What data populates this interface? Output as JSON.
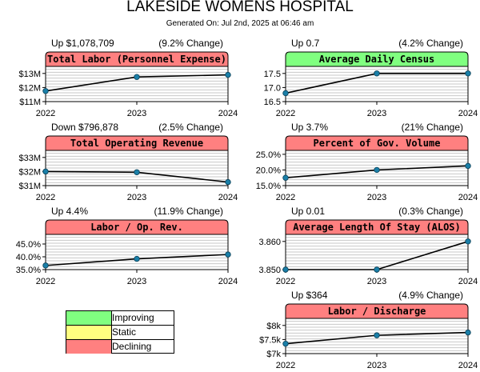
{
  "header": {
    "title": "LAKESIDE WOMENS HOSPITAL",
    "subtitle": "Generated On: Jul 2nd, 2025 at 06:46 am"
  },
  "colors": {
    "improving": "#80ff80",
    "static": "#ffff80",
    "declining": "#ff8080",
    "line": "#000000",
    "marker": "#1a7fa8"
  },
  "legend": {
    "items": [
      {
        "label": "Improving",
        "color": "#80ff80"
      },
      {
        "label": "Static",
        "color": "#ffff80"
      },
      {
        "label": "Declining",
        "color": "#ff8080"
      }
    ]
  },
  "chart_data": [
    {
      "type": "line",
      "title": "Total Labor (Personnel Expense)",
      "status": "declining",
      "change_value": "Up $1,078,709",
      "change_pct": "(9.2% Change)",
      "x": [
        "2022",
        "2023",
        "2024"
      ],
      "values": [
        11.75,
        12.75,
        12.9
      ],
      "ylim": [
        11,
        13.5
      ],
      "yticks": [
        11,
        12,
        13
      ],
      "ytick_labels": [
        "$11M",
        "$12M",
        "$13M"
      ],
      "grid": true
    },
    {
      "type": "line",
      "title": "Average Daily Census",
      "status": "improving",
      "change_value": "Up 0.7",
      "change_pct": "(4.2% Change)",
      "x": [
        "2022",
        "2023",
        "2024"
      ],
      "values": [
        16.8,
        17.5,
        17.5
      ],
      "ylim": [
        16.5,
        17.75
      ],
      "yticks": [
        16.5,
        17.0,
        17.5
      ],
      "ytick_labels": [
        "16.5",
        "17.0",
        "17.5"
      ],
      "grid": true
    },
    {
      "type": "line",
      "title": "Total Operating Revenue",
      "status": "declining",
      "change_value": "Down $796,878",
      "change_pct": "(2.5% Change)",
      "x": [
        "2022",
        "2023",
        "2024"
      ],
      "values": [
        32.0,
        31.95,
        31.25
      ],
      "ylim": [
        31,
        33.5
      ],
      "yticks": [
        31,
        32,
        33
      ],
      "ytick_labels": [
        "$31M",
        "$32M",
        "$33M"
      ],
      "grid": true
    },
    {
      "type": "line",
      "title": "Percent of Gov. Volume",
      "status": "declining",
      "change_value": "Up 3.7%",
      "change_pct": "(21% Change)",
      "x": [
        "2022",
        "2023",
        "2024"
      ],
      "values": [
        17.5,
        20.0,
        21.3
      ],
      "ylim": [
        15,
        26.25
      ],
      "yticks": [
        15,
        20,
        25
      ],
      "ytick_labels": [
        "15.0%",
        "20.0%",
        "25.0%"
      ],
      "grid": true
    },
    {
      "type": "line",
      "title": "Labor / Op. Rev.",
      "status": "declining",
      "change_value": "Up 4.4%",
      "change_pct": "(11.9% Change)",
      "x": [
        "2022",
        "2023",
        "2024"
      ],
      "values": [
        36.6,
        39.2,
        40.9
      ],
      "ylim": [
        35,
        48.75
      ],
      "yticks": [
        35,
        40,
        45
      ],
      "ytick_labels": [
        "35.0%",
        "40.0%",
        "45.0%"
      ],
      "grid": true
    },
    {
      "type": "line",
      "title": "Average Length Of Stay (ALOS)",
      "status": "declining",
      "change_value": "Up 0.01",
      "change_pct": "(0.3% Change)",
      "x": [
        "2022",
        "2023",
        "2024"
      ],
      "values": [
        3.85,
        3.85,
        3.86
      ],
      "ylim": [
        3.85,
        3.8625
      ],
      "yticks": [
        3.85,
        3.86
      ],
      "ytick_labels": [
        "3.850",
        "3.860"
      ],
      "grid": true
    },
    {
      "type": "line",
      "title": "Labor / Discharge",
      "status": "declining",
      "change_value": "Up $364",
      "change_pct": "(4.9% Change)",
      "x": [
        "2022",
        "2023",
        "2024"
      ],
      "values": [
        7.35,
        7.65,
        7.75
      ],
      "ylim": [
        7,
        8.25
      ],
      "yticks": [
        7,
        7.5,
        8
      ],
      "ytick_labels": [
        "$7k",
        "$7.5k",
        "$8k"
      ],
      "grid": true
    }
  ]
}
